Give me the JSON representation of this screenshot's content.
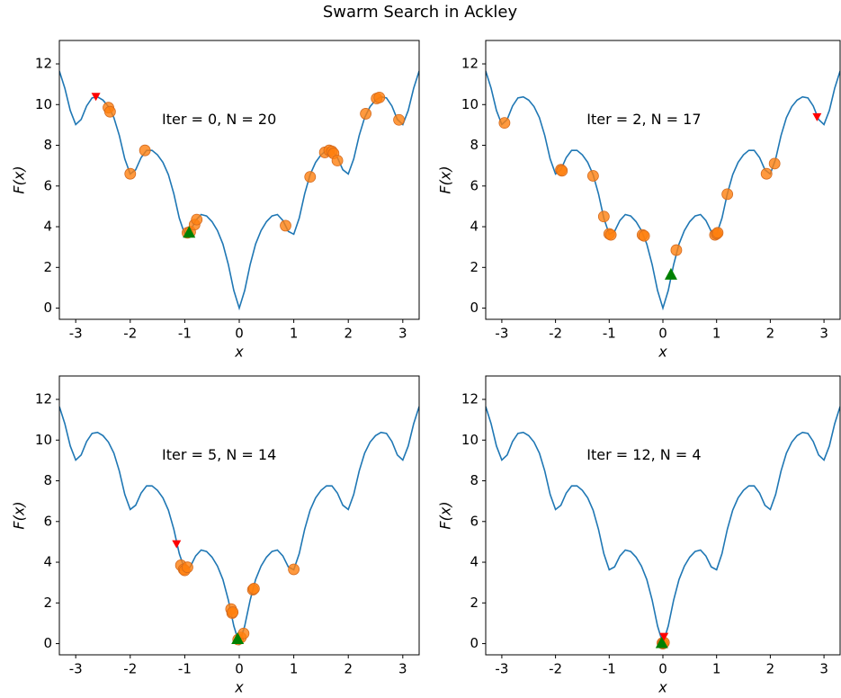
{
  "title": "Swarm Search in Ackley",
  "chart_data": [
    {
      "type": "line",
      "annotation": "Iter = 0, N = 20",
      "xlabel": "x",
      "ylabel": "F(x)",
      "xlim": [
        -3.3,
        3.3
      ],
      "ylim": [
        -0.55,
        13.15
      ],
      "xticks": [
        -3,
        -2,
        -1,
        0,
        1,
        2,
        3
      ],
      "yticks": [
        0,
        2,
        4,
        6,
        8,
        10,
        12
      ],
      "series": [
        {
          "type": "line",
          "color": "#1f77b4",
          "x": [
            -3.3,
            -3.2,
            -3.1,
            -3.0,
            -2.9,
            -2.8,
            -2.7,
            -2.6,
            -2.5,
            -2.4,
            -2.3,
            -2.2,
            -2.1,
            -2.0,
            -1.9,
            -1.8,
            -1.7,
            -1.6,
            -1.5,
            -1.4,
            -1.3,
            -1.2,
            -1.1,
            -1.0,
            -0.9,
            -0.8,
            -0.7,
            -0.6,
            -0.5,
            -0.4,
            -0.3,
            -0.2,
            -0.1,
            0,
            0.1,
            0.2,
            0.3,
            0.4,
            0.5,
            0.6,
            0.7,
            0.8,
            0.9,
            1.0,
            1.1,
            1.2,
            1.3,
            1.4,
            1.5,
            1.6,
            1.7,
            1.8,
            1.9,
            2.0,
            2.1,
            2.2,
            2.3,
            2.4,
            2.5,
            2.6,
            2.7,
            2.8,
            2.9,
            3.0,
            3.1,
            3.2,
            3.3
          ],
          "y": [
            11.65,
            10.81,
            9.71,
            9.02,
            9.27,
            9.93,
            10.33,
            10.38,
            10.22,
            9.9,
            9.36,
            8.48,
            7.33,
            6.59,
            6.8,
            7.4,
            7.75,
            7.75,
            7.53,
            7.16,
            6.56,
            5.62,
            4.42,
            3.63,
            3.77,
            4.31,
            4.6,
            4.53,
            4.25,
            3.81,
            3.15,
            2.14,
            0.87,
            0,
            0.87,
            2.14,
            3.15,
            3.81,
            4.25,
            4.53,
            4.6,
            4.31,
            3.77,
            3.63,
            4.42,
            5.62,
            6.56,
            7.16,
            7.53,
            7.75,
            7.75,
            7.4,
            6.8,
            6.59,
            7.33,
            8.48,
            9.36,
            9.9,
            10.22,
            10.38,
            10.33,
            9.93,
            9.27,
            9.02,
            9.71,
            10.81,
            11.65
          ]
        },
        {
          "type": "scatter",
          "marker": "o",
          "color": "#ff7f0e",
          "x": [
            -2.4,
            -2.37,
            -2.0,
            -1.73,
            -0.95,
            -0.9,
            -0.82,
            -0.78,
            0.85,
            1.3,
            1.57,
            1.65,
            1.7,
            1.73,
            1.8,
            2.32,
            2.52,
            2.57,
            2.93
          ],
          "y": [
            9.85,
            9.65,
            6.6,
            7.75,
            3.7,
            3.75,
            4.1,
            4.35,
            4.05,
            6.45,
            7.65,
            7.75,
            7.7,
            7.6,
            7.25,
            9.55,
            10.3,
            10.35,
            9.25
          ]
        },
        {
          "type": "scatter",
          "marker": "^",
          "color": "#008000",
          "x": [
            -0.92
          ],
          "y": [
            3.68
          ]
        },
        {
          "type": "scatter",
          "marker": "v",
          "color": "#ff0000",
          "x": [
            -2.63
          ],
          "y": [
            10.4
          ]
        }
      ]
    },
    {
      "type": "line",
      "annotation": "Iter = 2, N = 17",
      "xlabel": "x",
      "ylabel": "F(x)",
      "xlim": [
        -3.3,
        3.3
      ],
      "ylim": [
        -0.55,
        13.15
      ],
      "xticks": [
        -3,
        -2,
        -1,
        0,
        1,
        2,
        3
      ],
      "yticks": [
        0,
        2,
        4,
        6,
        8,
        10,
        12
      ],
      "series": [
        {
          "type": "line",
          "color": "#1f77b4",
          "x": [
            -3.3,
            -3.2,
            -3.1,
            -3.0,
            -2.9,
            -2.8,
            -2.7,
            -2.6,
            -2.5,
            -2.4,
            -2.3,
            -2.2,
            -2.1,
            -2.0,
            -1.9,
            -1.8,
            -1.7,
            -1.6,
            -1.5,
            -1.4,
            -1.3,
            -1.2,
            -1.1,
            -1.0,
            -0.9,
            -0.8,
            -0.7,
            -0.6,
            -0.5,
            -0.4,
            -0.3,
            -0.2,
            -0.1,
            0,
            0.1,
            0.2,
            0.3,
            0.4,
            0.5,
            0.6,
            0.7,
            0.8,
            0.9,
            1.0,
            1.1,
            1.2,
            1.3,
            1.4,
            1.5,
            1.6,
            1.7,
            1.8,
            1.9,
            2.0,
            2.1,
            2.2,
            2.3,
            2.4,
            2.5,
            2.6,
            2.7,
            2.8,
            2.9,
            3.0,
            3.1,
            3.2,
            3.3
          ],
          "y": [
            11.65,
            10.81,
            9.71,
            9.02,
            9.27,
            9.93,
            10.33,
            10.38,
            10.22,
            9.9,
            9.36,
            8.48,
            7.33,
            6.59,
            6.8,
            7.4,
            7.75,
            7.75,
            7.53,
            7.16,
            6.56,
            5.62,
            4.42,
            3.63,
            3.77,
            4.31,
            4.6,
            4.53,
            4.25,
            3.81,
            3.15,
            2.14,
            0.87,
            0,
            0.87,
            2.14,
            3.15,
            3.81,
            4.25,
            4.53,
            4.6,
            4.31,
            3.77,
            3.63,
            4.42,
            5.62,
            6.56,
            7.16,
            7.53,
            7.75,
            7.75,
            7.4,
            6.8,
            6.59,
            7.33,
            8.48,
            9.36,
            9.9,
            10.22,
            10.38,
            10.33,
            9.93,
            9.27,
            9.02,
            9.71,
            10.81,
            11.65
          ]
        },
        {
          "type": "scatter",
          "marker": "o",
          "color": "#ff7f0e",
          "x": [
            -2.95,
            -1.9,
            -1.88,
            -1.3,
            -1.1,
            -1.0,
            -0.97,
            -0.38,
            -0.35,
            0.25,
            0.97,
            1.0,
            1.02,
            1.2,
            1.93,
            2.08
          ],
          "y": [
            9.1,
            6.8,
            6.75,
            6.5,
            4.5,
            3.65,
            3.6,
            3.6,
            3.55,
            2.85,
            3.6,
            3.65,
            3.7,
            5.6,
            6.6,
            7.1
          ]
        },
        {
          "type": "scatter",
          "marker": "^",
          "color": "#008000",
          "x": [
            0.15
          ],
          "y": [
            1.62
          ]
        },
        {
          "type": "scatter",
          "marker": "v",
          "color": "#ff0000",
          "x": [
            2.87
          ],
          "y": [
            9.4
          ]
        }
      ]
    },
    {
      "type": "line",
      "annotation": "Iter = 5, N = 14",
      "xlabel": "x",
      "ylabel": "F(x)",
      "xlim": [
        -3.3,
        3.3
      ],
      "ylim": [
        -0.55,
        13.15
      ],
      "xticks": [
        -3,
        -2,
        -1,
        0,
        1,
        2,
        3
      ],
      "yticks": [
        0,
        2,
        4,
        6,
        8,
        10,
        12
      ],
      "series": [
        {
          "type": "line",
          "color": "#1f77b4",
          "x": [
            -3.3,
            -3.2,
            -3.1,
            -3.0,
            -2.9,
            -2.8,
            -2.7,
            -2.6,
            -2.5,
            -2.4,
            -2.3,
            -2.2,
            -2.1,
            -2.0,
            -1.9,
            -1.8,
            -1.7,
            -1.6,
            -1.5,
            -1.4,
            -1.3,
            -1.2,
            -1.1,
            -1.0,
            -0.9,
            -0.8,
            -0.7,
            -0.6,
            -0.5,
            -0.4,
            -0.3,
            -0.2,
            -0.1,
            0,
            0.1,
            0.2,
            0.3,
            0.4,
            0.5,
            0.6,
            0.7,
            0.8,
            0.9,
            1.0,
            1.1,
            1.2,
            1.3,
            1.4,
            1.5,
            1.6,
            1.7,
            1.8,
            1.9,
            2.0,
            2.1,
            2.2,
            2.3,
            2.4,
            2.5,
            2.6,
            2.7,
            2.8,
            2.9,
            3.0,
            3.1,
            3.2,
            3.3
          ],
          "y": [
            11.65,
            10.81,
            9.71,
            9.02,
            9.27,
            9.93,
            10.33,
            10.38,
            10.22,
            9.9,
            9.36,
            8.48,
            7.33,
            6.59,
            6.8,
            7.4,
            7.75,
            7.75,
            7.53,
            7.16,
            6.56,
            5.62,
            4.42,
            3.63,
            3.77,
            4.31,
            4.6,
            4.53,
            4.25,
            3.81,
            3.15,
            2.14,
            0.87,
            0,
            0.87,
            2.14,
            3.15,
            3.81,
            4.25,
            4.53,
            4.6,
            4.31,
            3.77,
            3.63,
            4.42,
            5.62,
            6.56,
            7.16,
            7.53,
            7.75,
            7.75,
            7.4,
            6.8,
            6.59,
            7.33,
            8.48,
            9.36,
            9.9,
            10.22,
            10.38,
            10.33,
            9.93,
            9.27,
            9.02,
            9.71,
            10.81,
            11.65
          ]
        },
        {
          "type": "scatter",
          "marker": "o",
          "color": "#ff7f0e",
          "x": [
            -1.07,
            -1.02,
            -1.0,
            -0.95,
            -0.15,
            -0.13,
            -0.12,
            -0.02,
            0.03,
            0.08,
            0.25,
            0.27,
            1.0
          ],
          "y": [
            3.85,
            3.65,
            3.6,
            3.75,
            1.7,
            1.5,
            1.55,
            0.2,
            0.3,
            0.5,
            2.65,
            2.7,
            3.65
          ]
        },
        {
          "type": "scatter",
          "marker": "^",
          "color": "#008000",
          "x": [
            -0.03
          ],
          "y": [
            0.2
          ]
        },
        {
          "type": "scatter",
          "marker": "v",
          "color": "#ff0000",
          "x": [
            -1.15
          ],
          "y": [
            4.9
          ]
        }
      ]
    },
    {
      "type": "line",
      "annotation": "Iter = 12, N = 4",
      "xlabel": "x",
      "ylabel": "F(x)",
      "xlim": [
        -3.3,
        3.3
      ],
      "ylim": [
        -0.55,
        13.15
      ],
      "xticks": [
        -3,
        -2,
        -1,
        0,
        1,
        2,
        3
      ],
      "yticks": [
        0,
        2,
        4,
        6,
        8,
        10,
        12
      ],
      "series": [
        {
          "type": "line",
          "color": "#1f77b4",
          "x": [
            -3.3,
            -3.2,
            -3.1,
            -3.0,
            -2.9,
            -2.8,
            -2.7,
            -2.6,
            -2.5,
            -2.4,
            -2.3,
            -2.2,
            -2.1,
            -2.0,
            -1.9,
            -1.8,
            -1.7,
            -1.6,
            -1.5,
            -1.4,
            -1.3,
            -1.2,
            -1.1,
            -1.0,
            -0.9,
            -0.8,
            -0.7,
            -0.6,
            -0.5,
            -0.4,
            -0.3,
            -0.2,
            -0.1,
            0,
            0.1,
            0.2,
            0.3,
            0.4,
            0.5,
            0.6,
            0.7,
            0.8,
            0.9,
            1.0,
            1.1,
            1.2,
            1.3,
            1.4,
            1.5,
            1.6,
            1.7,
            1.8,
            1.9,
            2.0,
            2.1,
            2.2,
            2.3,
            2.4,
            2.5,
            2.6,
            2.7,
            2.8,
            2.9,
            3.0,
            3.1,
            3.2,
            3.3
          ],
          "y": [
            11.65,
            10.81,
            9.71,
            9.02,
            9.27,
            9.93,
            10.33,
            10.38,
            10.22,
            9.9,
            9.36,
            8.48,
            7.33,
            6.59,
            6.8,
            7.4,
            7.75,
            7.75,
            7.53,
            7.16,
            6.56,
            5.62,
            4.42,
            3.63,
            3.77,
            4.31,
            4.6,
            4.53,
            4.25,
            3.81,
            3.15,
            2.14,
            0.87,
            0,
            0.87,
            2.14,
            3.15,
            3.81,
            4.25,
            4.53,
            4.6,
            4.31,
            3.77,
            3.63,
            4.42,
            5.62,
            6.56,
            7.16,
            7.53,
            7.75,
            7.75,
            7.4,
            6.8,
            6.59,
            7.33,
            8.48,
            9.36,
            9.9,
            10.22,
            10.38,
            10.33,
            9.93,
            9.27,
            9.02,
            9.71,
            10.81,
            11.65
          ]
        },
        {
          "type": "scatter",
          "marker": "o",
          "color": "#ff7f0e",
          "x": [
            -0.01,
            0.0,
            0.02
          ],
          "y": [
            0.03,
            0.0,
            0.05
          ]
        },
        {
          "type": "scatter",
          "marker": "^",
          "color": "#008000",
          "x": [
            -0.02
          ],
          "y": [
            0.0
          ]
        },
        {
          "type": "scatter",
          "marker": "v",
          "color": "#ff0000",
          "x": [
            0.02
          ],
          "y": [
            0.35
          ]
        }
      ]
    }
  ]
}
